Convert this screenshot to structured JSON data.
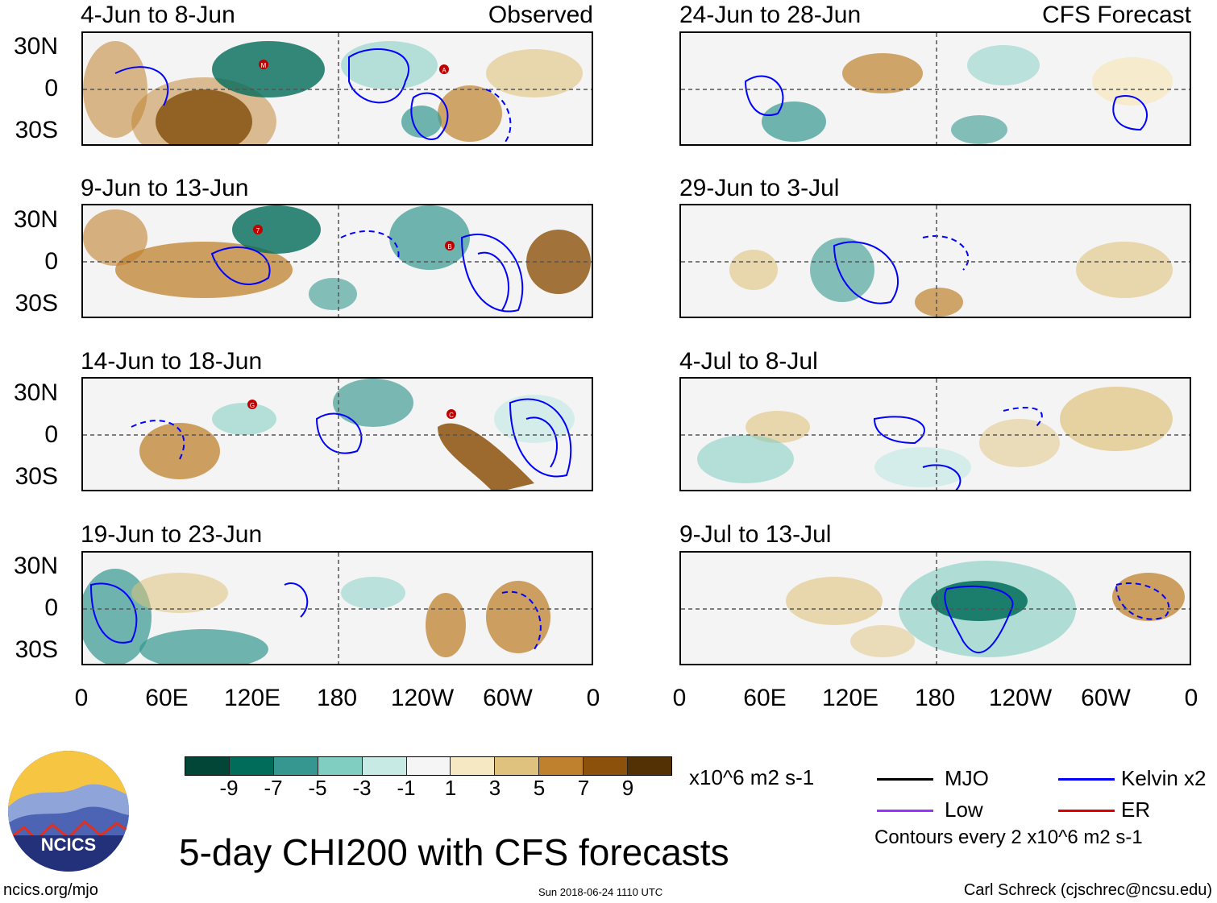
{
  "left_column_header": "Observed",
  "right_column_header": "CFS Forecast",
  "panels_left": [
    {
      "title": "4-Jun to 8-Jun"
    },
    {
      "title": "9-Jun to 13-Jun"
    },
    {
      "title": "14-Jun to 18-Jun"
    },
    {
      "title": "19-Jun to 23-Jun"
    }
  ],
  "panels_right": [
    {
      "title": "24-Jun to 28-Jun"
    },
    {
      "title": "29-Jun to 3-Jul"
    },
    {
      "title": "4-Jul to 8-Jul"
    },
    {
      "title": "9-Jul to 13-Jul"
    }
  ],
  "lat_labels": [
    "30N",
    "0",
    "30S"
  ],
  "lon_labels": [
    "0",
    "60E",
    "120E",
    "180",
    "120W",
    "60W",
    "0"
  ],
  "storm_markers": {
    "panel1": [
      "M",
      "A"
    ],
    "panel2": [
      "7",
      "B"
    ],
    "panel3": [
      "G",
      "C"
    ]
  },
  "colorbar": {
    "colors": [
      "#014636",
      "#016c59",
      "#35978f",
      "#80cdc1",
      "#c7eae5",
      "#f5f5f5",
      "#f6e8c3",
      "#dfc27d",
      "#bf812d",
      "#8c510a",
      "#543005"
    ],
    "labels": [
      "-9",
      "-7",
      "-5",
      "-3",
      "-1",
      "1",
      "3",
      "5",
      "7",
      "9"
    ],
    "units": "x10^6 m2 s-1"
  },
  "legend": [
    {
      "label": "MJO",
      "color": "#000000"
    },
    {
      "label": "Kelvin x2",
      "color": "#0000ff"
    },
    {
      "label": "Low",
      "color": "#9933ff"
    },
    {
      "label": "ER",
      "color": "#e00000"
    }
  ],
  "contour_note": "Contours every 2 x10^6 m2 s-1",
  "main_title": "5-day CHI200 with CFS forecasts",
  "logo_text": "NCICS",
  "footer_left": "ncics.org/mjo",
  "footer_center": "Sun 2018-06-24 1110 UTC",
  "footer_right": "Carl Schreck (cjschrec@ncsu.edu)"
}
